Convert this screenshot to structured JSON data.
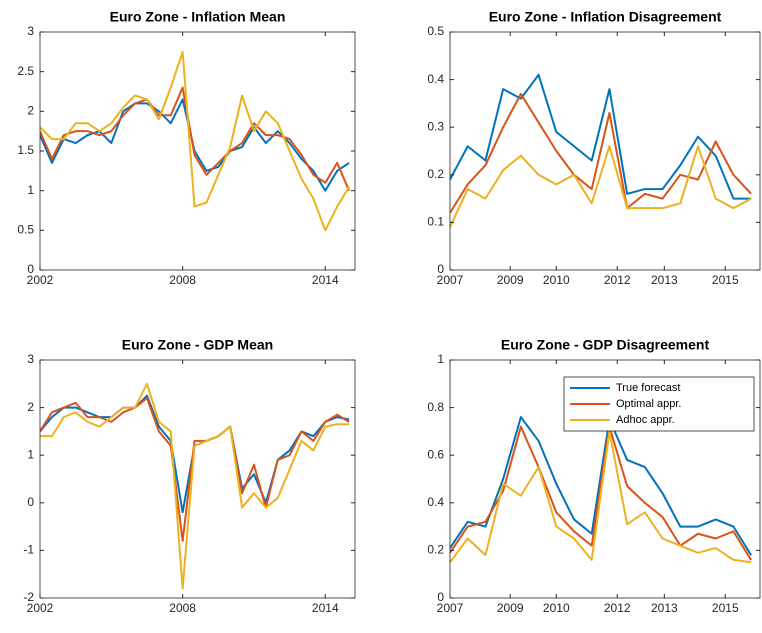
{
  "chart_data": [
    {
      "type": "line",
      "title": "Euro Zone - Inflation Mean",
      "x": [
        2002,
        2002.5,
        2003,
        2003.5,
        2004,
        2004.5,
        2005,
        2005.5,
        2006,
        2006.5,
        2007,
        2007.5,
        2008,
        2008.5,
        2009,
        2009.5,
        2010,
        2010.5,
        2011,
        2011.5,
        2012,
        2012.5,
        2013,
        2013.5,
        2014,
        2014.5,
        2015
      ],
      "xlim": [
        2002,
        2015.25
      ],
      "xticks": [
        2002,
        2008,
        2014
      ],
      "ylim": [
        0,
        3
      ],
      "yticks": [
        0,
        0.5,
        1,
        1.5,
        2,
        2.5,
        3
      ],
      "series": [
        {
          "color": "#0072BD",
          "values": [
            1.7,
            1.35,
            1.65,
            1.6,
            1.7,
            1.75,
            1.6,
            2.0,
            2.1,
            2.1,
            2.0,
            1.85,
            2.15,
            1.5,
            1.25,
            1.3,
            1.5,
            1.55,
            1.8,
            1.6,
            1.75,
            1.6,
            1.4,
            1.25,
            1.0,
            1.25,
            1.35
          ]
        },
        {
          "color": "#D95319",
          "values": [
            1.75,
            1.4,
            1.7,
            1.75,
            1.75,
            1.7,
            1.75,
            1.95,
            2.1,
            2.15,
            1.95,
            1.95,
            2.3,
            1.45,
            1.2,
            1.35,
            1.5,
            1.6,
            1.85,
            1.7,
            1.7,
            1.65,
            1.45,
            1.2,
            1.1,
            1.35,
            1.0
          ]
        },
        {
          "color": "#EDB120",
          "values": [
            1.8,
            1.65,
            1.65,
            1.85,
            1.85,
            1.75,
            1.85,
            2.05,
            2.2,
            2.15,
            1.9,
            2.3,
            2.75,
            0.8,
            0.85,
            1.2,
            1.55,
            2.2,
            1.75,
            2.0,
            1.85,
            1.5,
            1.15,
            0.9,
            0.5,
            0.8,
            1.05
          ]
        }
      ]
    },
    {
      "type": "line",
      "title": "Euro Zone - Inflation Disagreement",
      "x": [
        2007,
        2007.5,
        2008,
        2008.5,
        2009,
        2009.5,
        2010,
        2010.5,
        2011,
        2011.5,
        2012,
        2012.5,
        2013,
        2013.5,
        2014,
        2014.5,
        2015,
        2015.5
      ],
      "xlim": [
        2007,
        2015.75
      ],
      "xticks": [
        2007,
        {
          "value": 2008.7,
          "label": "2009"
        },
        2010,
        {
          "value": 2011.72,
          "label": "2012"
        },
        {
          "value": 2013.05,
          "label": "2013"
        },
        {
          "value": 2014.77,
          "label": "2015"
        }
      ],
      "ylim": [
        0,
        0.5
      ],
      "yticks": [
        0,
        0.1,
        0.2,
        0.3,
        0.4,
        0.5
      ],
      "series": [
        {
          "color": "#0072BD",
          "values": [
            0.19,
            0.26,
            0.23,
            0.38,
            0.36,
            0.41,
            0.29,
            0.26,
            0.23,
            0.38,
            0.16,
            0.17,
            0.17,
            0.22,
            0.28,
            0.24,
            0.15,
            0.15
          ]
        },
        {
          "color": "#D95319",
          "values": [
            0.12,
            0.18,
            0.22,
            0.3,
            0.37,
            0.31,
            0.25,
            0.2,
            0.17,
            0.33,
            0.13,
            0.16,
            0.15,
            0.2,
            0.19,
            0.27,
            0.2,
            0.16
          ]
        },
        {
          "color": "#EDB120",
          "values": [
            0.09,
            0.17,
            0.15,
            0.21,
            0.24,
            0.2,
            0.18,
            0.2,
            0.14,
            0.26,
            0.13,
            0.13,
            0.13,
            0.14,
            0.26,
            0.15,
            0.13,
            0.15
          ]
        }
      ]
    },
    {
      "type": "line",
      "title": "Euro Zone - GDP Mean",
      "x": [
        2002,
        2002.5,
        2003,
        2003.5,
        2004,
        2004.5,
        2005,
        2005.5,
        2006,
        2006.5,
        2007,
        2007.5,
        2008,
        2008.5,
        2009,
        2009.5,
        2010,
        2010.5,
        2011,
        2011.5,
        2012,
        2012.5,
        2013,
        2013.5,
        2014,
        2014.5,
        2015
      ],
      "xlim": [
        2002,
        2015.25
      ],
      "xticks": [
        2002,
        2008,
        2014
      ],
      "ylim": [
        -2,
        3
      ],
      "yticks": [
        -2,
        -1,
        0,
        1,
        2,
        3
      ],
      "series": [
        {
          "color": "#0072BD",
          "values": [
            1.5,
            1.8,
            2.0,
            2.0,
            1.9,
            1.8,
            1.8,
            2.0,
            2.0,
            2.25,
            1.6,
            1.3,
            -0.2,
            1.2,
            1.3,
            1.4,
            1.6,
            0.3,
            0.6,
            0.0,
            0.9,
            1.1,
            1.5,
            1.4,
            1.7,
            1.8,
            1.75
          ]
        },
        {
          "color": "#D95319",
          "values": [
            1.5,
            1.9,
            2.0,
            2.1,
            1.8,
            1.8,
            1.7,
            1.9,
            2.0,
            2.2,
            1.5,
            1.2,
            -0.8,
            1.3,
            1.3,
            1.4,
            1.6,
            0.2,
            0.8,
            -0.1,
            0.9,
            1.0,
            1.5,
            1.3,
            1.7,
            1.85,
            1.7
          ]
        },
        {
          "color": "#EDB120",
          "values": [
            1.4,
            1.4,
            1.8,
            1.9,
            1.7,
            1.6,
            1.8,
            2.0,
            2.0,
            2.5,
            1.7,
            1.5,
            -1.8,
            1.2,
            1.3,
            1.4,
            1.6,
            -0.1,
            0.2,
            -0.1,
            0.1,
            0.7,
            1.3,
            1.1,
            1.6,
            1.65,
            1.65
          ]
        }
      ]
    },
    {
      "type": "line",
      "title": "Euro Zone - GDP Disagreement",
      "x": [
        2007,
        2007.5,
        2008,
        2008.5,
        2009,
        2009.5,
        2010,
        2010.5,
        2011,
        2011.5,
        2012,
        2012.5,
        2013,
        2013.5,
        2014,
        2014.5,
        2015,
        2015.5
      ],
      "xlim": [
        2007,
        2015.75
      ],
      "xticks": [
        2007,
        {
          "value": 2008.7,
          "label": "2009"
        },
        2010,
        {
          "value": 2011.72,
          "label": "2012"
        },
        {
          "value": 2013.05,
          "label": "2013"
        },
        {
          "value": 2014.77,
          "label": "2015"
        }
      ],
      "ylim": [
        0,
        1
      ],
      "yticks": [
        0,
        0.2,
        0.4,
        0.6,
        0.8,
        1
      ],
      "legend": "upper right",
      "series": [
        {
          "name": "True forecast",
          "color": "#0072BD",
          "values": [
            0.21,
            0.32,
            0.3,
            0.5,
            0.76,
            0.66,
            0.48,
            0.33,
            0.27,
            0.75,
            0.58,
            0.55,
            0.44,
            0.3,
            0.3,
            0.33,
            0.3,
            0.18
          ]
        },
        {
          "name": "Optimal appr.",
          "color": "#D95319",
          "values": [
            0.19,
            0.3,
            0.32,
            0.45,
            0.72,
            0.55,
            0.36,
            0.28,
            0.22,
            0.72,
            0.47,
            0.4,
            0.34,
            0.22,
            0.27,
            0.25,
            0.28,
            0.16
          ]
        },
        {
          "name": "Adhoc appr.",
          "color": "#EDB120",
          "values": [
            0.15,
            0.25,
            0.18,
            0.48,
            0.43,
            0.55,
            0.3,
            0.25,
            0.16,
            0.7,
            0.31,
            0.36,
            0.25,
            0.22,
            0.19,
            0.21,
            0.16,
            0.15
          ]
        }
      ]
    }
  ]
}
